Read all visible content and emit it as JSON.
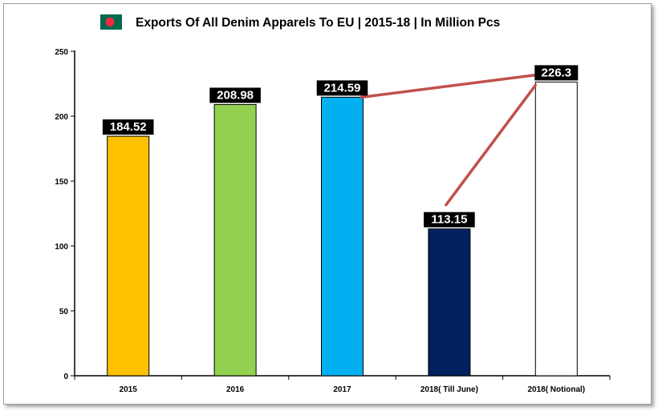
{
  "chart_data": {
    "type": "bar",
    "title": "Exports Of All Denim Apparels To EU | 2015-18 | In Million Pcs",
    "categories": [
      "2015",
      "2016",
      "2017",
      "2018( Till June)",
      "2018( Notional)"
    ],
    "values": [
      184.52,
      208.98,
      214.59,
      113.15,
      226.3
    ],
    "data_labels": [
      "184.52",
      "208.98",
      "214.59",
      "113.15",
      "226.3"
    ],
    "colors": [
      "#ffc000",
      "#92d050",
      "#00b0f0",
      "#002060",
      "#ffffff"
    ],
    "yticks": [
      "0",
      "50",
      "100",
      "150",
      "200",
      "250"
    ],
    "ylim": [
      0,
      250
    ],
    "xlabel": "",
    "ylabel": "",
    "grid": false,
    "legend": "none",
    "annotation_lines": [
      {
        "from": "2017",
        "to": "2018( Notional)"
      },
      {
        "from": "2018( Till June)",
        "to": "2018( Notional)"
      }
    ],
    "annotation_color": "#c0504d",
    "flag_icon": "bangladesh-flag-icon"
  }
}
